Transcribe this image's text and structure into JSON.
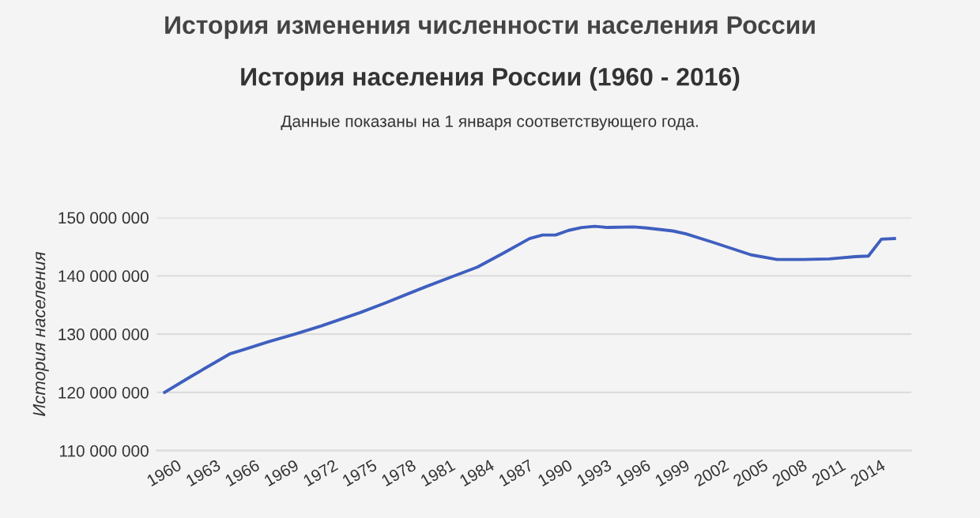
{
  "chart_data": {
    "type": "line",
    "title": "История изменения численности населения России",
    "subtitle": "История населения России (1960 - 2016)",
    "annotations": [
      "Данные показаны на 1 января соответствующего года."
    ],
    "ylabel": "История населения",
    "x": [
      1960,
      1962,
      1965,
      1966,
      1968,
      1970,
      1972,
      1975,
      1977,
      1980,
      1982,
      1984,
      1986,
      1988,
      1989,
      1990,
      1991,
      1992,
      1993,
      1994,
      1996,
      1997,
      1999,
      2000,
      2002,
      2005,
      2007,
      2009,
      2011,
      2013,
      2014,
      2015,
      2016
    ],
    "series": [
      {
        "color": "#3f5fbf",
        "values": [
          120000000,
          122700000,
          126600000,
          127300000,
          128700000,
          130000000,
          131400000,
          133700000,
          135400000,
          138100000,
          139800000,
          141500000,
          143900000,
          146400000,
          147000000,
          147000000,
          147800000,
          148300000,
          148500000,
          148300000,
          148400000,
          148200000,
          147700000,
          147200000,
          145800000,
          143600000,
          142800000,
          142800000,
          142900000,
          143300000,
          143400000,
          146300000,
          146400000
        ]
      }
    ],
    "xlim": [
      1959.4,
      2017.3
    ],
    "ylim": [
      110000000,
      150000000
    ],
    "xticks": [
      1960,
      1963,
      1966,
      1969,
      1972,
      1975,
      1978,
      1981,
      1984,
      1987,
      1990,
      1993,
      1996,
      1999,
      2002,
      2005,
      2008,
      2011,
      2014
    ],
    "yticks": [
      {
        "value": 110000000,
        "label": "110 000 000"
      },
      {
        "value": 120000000,
        "label": "120 000 000"
      },
      {
        "value": 130000000,
        "label": "130 000 000"
      },
      {
        "value": 140000000,
        "label": "140 000 000"
      },
      {
        "value": 150000000,
        "label": "150 000 000"
      }
    ],
    "grid": "y",
    "legend": false,
    "marker": "none",
    "line_style": "solid"
  }
}
